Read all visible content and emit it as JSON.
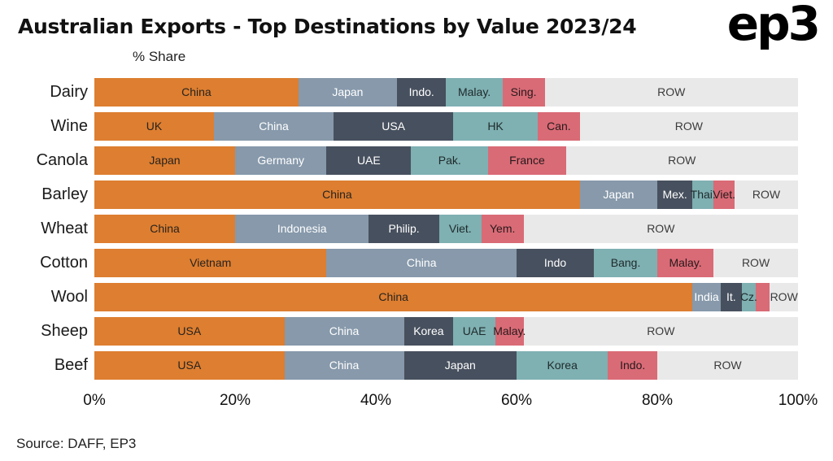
{
  "title": "Australian Exports - Top Destinations by Value 2023/24",
  "logo": "ep3",
  "source": "Source: DAFF, EP3",
  "chart_data": {
    "type": "bar",
    "orientation": "horizontal",
    "stacked": true,
    "title": "Australian Exports - Top Destinations by Value 2023/24",
    "xlabel": "% Share",
    "xlim": [
      0,
      100
    ],
    "x_ticks": [
      "0%",
      "20%",
      "40%",
      "60%",
      "80%",
      "100%"
    ],
    "grid": false,
    "legend": "none",
    "palette": [
      "#DD7E30",
      "#8799AB",
      "#47505E",
      "#7FB0B2",
      "#D96B76",
      "#E9E9E9"
    ],
    "label_colors": [
      "#27231F",
      "#FFFFFF",
      "#FFFFFF",
      "#1E2A2B",
      "#27191B",
      "#3B3B3B"
    ],
    "rows": [
      {
        "category": "Dairy",
        "segments": [
          {
            "label": "China",
            "value": 29
          },
          {
            "label": "Japan",
            "value": 14
          },
          {
            "label": "Indo.",
            "value": 7
          },
          {
            "label": "Malay.",
            "value": 8
          },
          {
            "label": "Sing.",
            "value": 6
          },
          {
            "label": "ROW",
            "value": 36
          }
        ]
      },
      {
        "category": "Wine",
        "segments": [
          {
            "label": "UK",
            "value": 17
          },
          {
            "label": "China",
            "value": 17
          },
          {
            "label": "USA",
            "value": 17
          },
          {
            "label": "HK",
            "value": 12
          },
          {
            "label": "Can.",
            "value": 6
          },
          {
            "label": "ROW",
            "value": 31
          }
        ]
      },
      {
        "category": "Canola",
        "segments": [
          {
            "label": "Japan",
            "value": 20
          },
          {
            "label": "Germany",
            "value": 13
          },
          {
            "label": "UAE",
            "value": 12
          },
          {
            "label": "Pak.",
            "value": 11
          },
          {
            "label": "France",
            "value": 11
          },
          {
            "label": "ROW",
            "value": 33
          }
        ]
      },
      {
        "category": "Barley",
        "segments": [
          {
            "label": "China",
            "value": 69
          },
          {
            "label": "Japan",
            "value": 11
          },
          {
            "label": "Mex.",
            "value": 5
          },
          {
            "label": "Thai.",
            "value": 3
          },
          {
            "label": "Viet.",
            "value": 3
          },
          {
            "label": "ROW",
            "value": 9
          }
        ]
      },
      {
        "category": "Wheat",
        "segments": [
          {
            "label": "China",
            "value": 20
          },
          {
            "label": "Indonesia",
            "value": 19
          },
          {
            "label": "Philip.",
            "value": 10
          },
          {
            "label": "Viet.",
            "value": 6
          },
          {
            "label": "Yem.",
            "value": 6
          },
          {
            "label": "ROW",
            "value": 39
          }
        ]
      },
      {
        "category": "Cotton",
        "segments": [
          {
            "label": "Vietnam",
            "value": 33
          },
          {
            "label": "China",
            "value": 27
          },
          {
            "label": "Indo",
            "value": 11
          },
          {
            "label": "Bang.",
            "value": 9
          },
          {
            "label": "Malay.",
            "value": 8
          },
          {
            "label": "ROW",
            "value": 12
          }
        ]
      },
      {
        "category": "Wool",
        "segments": [
          {
            "label": "China",
            "value": 85
          },
          {
            "label": "India",
            "value": 4
          },
          {
            "label": "It.",
            "value": 3
          },
          {
            "label": "Cz.",
            "value": 2
          },
          {
            "label": "",
            "value": 2
          },
          {
            "label": "ROW",
            "value": 4
          }
        ]
      },
      {
        "category": "Sheep",
        "segments": [
          {
            "label": "USA",
            "value": 27
          },
          {
            "label": "China",
            "value": 17
          },
          {
            "label": "Korea",
            "value": 7
          },
          {
            "label": "UAE",
            "value": 6
          },
          {
            "label": "Malay.",
            "value": 4
          },
          {
            "label": "ROW",
            "value": 39
          }
        ]
      },
      {
        "category": "Beef",
        "segments": [
          {
            "label": "USA",
            "value": 27
          },
          {
            "label": "China",
            "value": 17
          },
          {
            "label": "Japan",
            "value": 16
          },
          {
            "label": "Korea",
            "value": 13
          },
          {
            "label": "Indo.",
            "value": 7
          },
          {
            "label": "ROW",
            "value": 20
          }
        ]
      }
    ]
  }
}
